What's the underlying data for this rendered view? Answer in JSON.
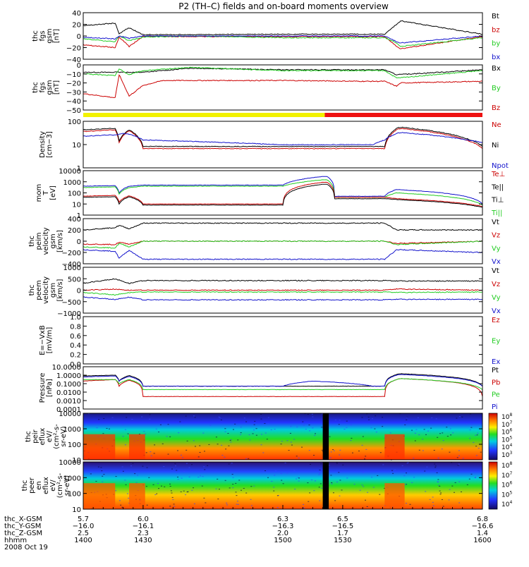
{
  "title": "P2 (TH–C) fields and on-board moments overview",
  "colors": {
    "black": "#000000",
    "red": "#cc0000",
    "green": "#22cc22",
    "blue": "#1111cc",
    "bar_yellow": "#f2f200",
    "bar_red": "#ee1111"
  },
  "mode_bar": {
    "segments": [
      {
        "from": 1400,
        "to": 1521,
        "color": "yellow"
      },
      {
        "from": 1521,
        "to": 1600,
        "color": "red"
      }
    ]
  },
  "colorbar_labels": [
    "10^8",
    "10^7",
    "10^6",
    "10^5",
    "10^4",
    "10^3"
  ],
  "colorbar_labels_peer": [
    "10^8",
    "10^7",
    "10^6",
    "10^5",
    "10^4"
  ],
  "bottom": {
    "rows": [
      {
        "label": "thc_X-GSM",
        "values": [
          "5.7",
          "6.0",
          "6.3",
          "6.5",
          "6.8"
        ]
      },
      {
        "label": "thc_Y-GSM",
        "values": [
          "−16.0",
          "−16.1",
          "−16.3",
          "−16.5",
          "−16.6"
        ]
      },
      {
        "label": "thc_Z-GSM",
        "values": [
          "2.5",
          "2.3",
          "2.0",
          "1.7",
          "1.4"
        ]
      },
      {
        "label": "hhmm",
        "values": [
          "1400",
          "1430",
          "1500",
          "1530",
          "1600"
        ]
      }
    ],
    "date": "2008 Oct 19"
  },
  "chart_data": [
    {
      "id": "fgs1",
      "type": "line",
      "ylabel": [
        "thc",
        "fgs",
        "gsm",
        "[nT]"
      ],
      "yticks": [
        "40",
        "20",
        "0",
        "−20",
        "−40"
      ],
      "ylim": [
        -40,
        40
      ],
      "legend": [
        {
          "text": "Bt",
          "color": "black"
        },
        {
          "text": "bz",
          "color": "red"
        },
        {
          "text": "by",
          "color": "green"
        },
        {
          "text": "bx",
          "color": "blue"
        }
      ],
      "series": [
        {
          "color": "black",
          "x": [
            1400,
            1416,
            1418,
            1423,
            1430,
            1500,
            1540,
            1551,
            1557,
            1559,
            1600
          ],
          "y": [
            18,
            22,
            4,
            14,
            2,
            3,
            3,
            3,
            20,
            26,
            3
          ]
        },
        {
          "color": "red",
          "x": [
            1400,
            1416,
            1418,
            1423,
            1430,
            1500,
            1540,
            1551,
            1557,
            1559,
            1600
          ],
          "y": [
            -15,
            -20,
            -2,
            -18,
            -1,
            -1,
            -1,
            -1,
            -18,
            -22,
            -1
          ]
        },
        {
          "color": "green",
          "x": [
            1400,
            1416,
            1418,
            1423,
            1430,
            1454,
            1500,
            1540,
            1551,
            1557,
            1559,
            1600
          ],
          "y": [
            -5,
            -10,
            0,
            -8,
            -2,
            0,
            -3,
            -3,
            -3,
            -12,
            -18,
            -3
          ]
        },
        {
          "color": "blue",
          "x": [
            1400,
            1416,
            1418,
            1423,
            1430,
            1500,
            1540,
            1551,
            1557,
            1559,
            1600
          ],
          "y": [
            -2,
            -5,
            0,
            -4,
            0,
            0,
            0,
            0,
            -10,
            -12,
            0
          ]
        }
      ]
    },
    {
      "id": "fgs2",
      "type": "line",
      "ylabel": [
        "thc",
        "fgs",
        "gsm",
        "[nT]"
      ],
      "yticks": [
        "0",
        "−10",
        "−20",
        "−30",
        "−40",
        "−50"
      ],
      "ylim": [
        -55,
        0
      ],
      "legend": [
        {
          "text": "Bx",
          "color": "black"
        },
        {
          "text": "By",
          "color": "green"
        },
        {
          "text": "Bz",
          "color": "red"
        }
      ],
      "series": [
        {
          "color": "black",
          "x": [
            1400,
            1430,
            1454,
            1500,
            1540,
            1551,
            1557,
            1600
          ],
          "y": [
            -9,
            -9,
            -4,
            -6,
            -6,
            -6,
            -12,
            -6
          ]
        },
        {
          "color": "green",
          "x": [
            1400,
            1416,
            1418,
            1423,
            1430,
            1454,
            1500,
            1540,
            1551,
            1557,
            1600
          ],
          "y": [
            -11,
            -13,
            -5,
            -12,
            -7,
            -3,
            -7,
            -7,
            -7,
            -16,
            -7
          ]
        },
        {
          "color": "red",
          "x": [
            1400,
            1416,
            1418,
            1423,
            1430,
            1440,
            1500,
            1540,
            1551,
            1557,
            1559,
            1600
          ],
          "y": [
            -35,
            -40,
            -12,
            -38,
            -25,
            -19,
            -19,
            -20,
            -20,
            -26,
            -22,
            -20
          ]
        }
      ]
    },
    {
      "id": "density",
      "type": "line",
      "log": true,
      "ylabel": [
        "Density",
        "[cm−3]"
      ],
      "yticks": [
        "100",
        "10",
        "1"
      ],
      "ylim": [
        1,
        150
      ],
      "legend": [
        {
          "text": "Ne",
          "color": "red"
        },
        {
          "text": "Ni",
          "color": "black"
        },
        {
          "text": "Npot",
          "color": "blue"
        }
      ],
      "series": [
        {
          "color": "red",
          "x": [
            1400,
            1416,
            1418,
            1423,
            1430,
            1500,
            1545,
            1551,
            1557,
            1559,
            1600
          ],
          "y": [
            50,
            60,
            15,
            55,
            8,
            8,
            8,
            8,
            60,
            70,
            8
          ]
        },
        {
          "color": "black",
          "x": [
            1400,
            1416,
            1418,
            1423,
            1430,
            1500,
            1545,
            1551,
            1557,
            1559,
            1600
          ],
          "y": [
            60,
            70,
            18,
            60,
            10,
            10,
            10,
            10,
            70,
            80,
            10
          ]
        },
        {
          "color": "blue",
          "x": [
            1400,
            1416,
            1420,
            1423,
            1430,
            1500,
            1545,
            1551,
            1557,
            1559,
            1600
          ],
          "y": [
            30,
            35,
            40,
            38,
            20,
            12,
            12,
            20,
            40,
            45,
            15
          ]
        }
      ]
    },
    {
      "id": "temp",
      "type": "line",
      "log": true,
      "ylabel": [
        "mom",
        "T",
        "[eV]"
      ],
      "yticks": [
        "10000",
        "1000",
        "100",
        "10",
        "1"
      ],
      "ylim": [
        1,
        10000
      ],
      "legend": [
        {
          "text": "Te⊥",
          "color": "red"
        },
        {
          "text": "Te||",
          "color": "black"
        },
        {
          "text": "Ti⊥",
          "color": "black"
        },
        {
          "text": "Ti||",
          "color": "green"
        }
      ],
      "series": [
        {
          "color": "blue",
          "x": [
            1400,
            1416,
            1418,
            1423,
            1430,
            1500,
            1520,
            1522,
            1526,
            1530,
            1551,
            1557,
            1600
          ],
          "y": [
            400,
            450,
            100,
            400,
            500,
            500,
            3000,
            3000,
            50,
            50,
            50,
            200,
            10
          ]
        },
        {
          "color": "green",
          "x": [
            1400,
            1416,
            1418,
            1423,
            1430,
            1500,
            1520,
            1522,
            1526,
            1530,
            1551,
            1557,
            1600
          ],
          "y": [
            300,
            350,
            80,
            300,
            400,
            400,
            1500,
            1500,
            40,
            40,
            40,
            100,
            8
          ]
        },
        {
          "color": "red",
          "x": [
            1400,
            1416,
            1418,
            1423,
            1430,
            1500,
            1520,
            1522,
            1526,
            1530,
            1551,
            1557,
            1600
          ],
          "y": [
            50,
            60,
            15,
            55,
            10,
            10,
            900,
            900,
            40,
            40,
            40,
            30,
            6
          ]
        },
        {
          "color": "black",
          "x": [
            1400,
            1416,
            1418,
            1423,
            1430,
            1500,
            1520,
            1522,
            1526,
            1530,
            1551,
            1557,
            1600
          ],
          "y": [
            40,
            45,
            10,
            45,
            8,
            8,
            600,
            600,
            30,
            30,
            30,
            25,
            5
          ]
        }
      ]
    },
    {
      "id": "peim",
      "type": "line",
      "ylabel": [
        "thc",
        "peim",
        "velocity",
        "gsm",
        "[km/s]"
      ],
      "yticks": [
        "400",
        "200",
        "0",
        "−200",
        "−400"
      ],
      "ylim": [
        -400,
        400
      ],
      "legend": [
        {
          "text": "Vt",
          "color": "black"
        },
        {
          "text": "Vz",
          "color": "red"
        },
        {
          "text": "Vy",
          "color": "green"
        },
        {
          "text": "Vx",
          "color": "blue"
        }
      ],
      "series": [
        {
          "color": "black",
          "x": [
            1400,
            1416,
            1418,
            1423,
            1430,
            1500,
            1551,
            1557,
            1600
          ],
          "y": [
            200,
            240,
            280,
            220,
            320,
            320,
            320,
            200,
            200
          ]
        },
        {
          "color": "red",
          "x": [
            1400,
            1416,
            1418,
            1423,
            1430,
            1500,
            1551,
            1557,
            1600
          ],
          "y": [
            -50,
            -60,
            -20,
            -50,
            0,
            0,
            0,
            -40,
            0
          ]
        },
        {
          "color": "green",
          "x": [
            1400,
            1416,
            1418,
            1423,
            1430,
            1500,
            1551,
            1557,
            1600
          ],
          "y": [
            -100,
            -120,
            -40,
            -100,
            0,
            0,
            0,
            -60,
            0
          ]
        },
        {
          "color": "blue",
          "x": [
            1400,
            1416,
            1418,
            1423,
            1430,
            1500,
            1551,
            1557,
            1600
          ],
          "y": [
            -150,
            -180,
            -300,
            -160,
            -320,
            -320,
            -320,
            -150,
            -200
          ]
        }
      ]
    },
    {
      "id": "peem",
      "type": "line",
      "ylabel": [
        "thc",
        "peem",
        "velocity",
        "gsm",
        "[km/s]"
      ],
      "yticks": [
        "1000",
        "500",
        "0",
        "−500",
        "−1000"
      ],
      "ylim": [
        -1000,
        1000
      ],
      "legend": [
        {
          "text": "Vt",
          "color": "black"
        },
        {
          "text": "Vz",
          "color": "red"
        },
        {
          "text": "Vy",
          "color": "green"
        },
        {
          "text": "Vx",
          "color": "blue"
        }
      ],
      "series": [
        {
          "color": "black",
          "x": [
            1400,
            1416,
            1423,
            1430,
            1500,
            1551,
            1557,
            1600
          ],
          "y": [
            300,
            500,
            300,
            420,
            420,
            420,
            400,
            400
          ]
        },
        {
          "color": "red",
          "x": [
            1400,
            1416,
            1423,
            1430,
            1500,
            1551,
            1557,
            1600
          ],
          "y": [
            0,
            50,
            0,
            0,
            0,
            0,
            50,
            0
          ]
        },
        {
          "color": "green",
          "x": [
            1400,
            1416,
            1423,
            1430,
            1500,
            1551,
            1557,
            1600
          ],
          "y": [
            -100,
            -200,
            -100,
            -80,
            -80,
            -80,
            -100,
            -80
          ]
        },
        {
          "color": "blue",
          "x": [
            1400,
            1416,
            1423,
            1430,
            1500,
            1551,
            1557,
            1600
          ],
          "y": [
            -300,
            -400,
            -300,
            -420,
            -420,
            -420,
            -400,
            -400
          ]
        }
      ]
    },
    {
      "id": "efield",
      "type": "line",
      "ylabel": [
        "E=−VxB",
        "[mV/m]"
      ],
      "yticks": [
        "1.0",
        "0.8",
        "0.6",
        "0.4",
        "0.2",
        "0.0"
      ],
      "ylim": [
        0,
        1
      ],
      "legend": [
        {
          "text": "Ez",
          "color": "red"
        },
        {
          "text": "Ey",
          "color": "green"
        },
        {
          "text": "Ex",
          "color": "blue"
        }
      ],
      "series": []
    },
    {
      "id": "pressure",
      "type": "line",
      "log": true,
      "ylabel": [
        "Pressure",
        "[nPa]"
      ],
      "yticks": [
        "10.0000",
        "1.0000",
        "0.1000",
        "0.0100",
        "0.0010",
        "0.0001"
      ],
      "ylim": [
        0.0001,
        10
      ],
      "legend": [
        {
          "text": "Pt",
          "color": "black"
        },
        {
          "text": "Pb",
          "color": "red"
        },
        {
          "text": "Pe",
          "color": "green"
        },
        {
          "text": "Pi",
          "color": "blue"
        }
      ],
      "series": [
        {
          "color": "black",
          "x": [
            1400,
            1416,
            1418,
            1423,
            1430,
            1500,
            1515,
            1545,
            1551,
            1557,
            1559,
            1600
          ],
          "y": [
            0.8,
            1.0,
            0.2,
            0.9,
            0.05,
            0.05,
            0.05,
            0.05,
            0.05,
            1.2,
            1.5,
            0.05
          ]
        },
        {
          "color": "red",
          "x": [
            1400,
            1416,
            1418,
            1423,
            1430,
            1500,
            1515,
            1545,
            1551,
            1557,
            1559,
            1600
          ],
          "y": [
            0.2,
            0.3,
            0.05,
            0.25,
            0.003,
            0.003,
            0.003,
            0.003,
            0.003,
            0.3,
            0.4,
            0.003
          ]
        },
        {
          "color": "green",
          "x": [
            1400,
            1416,
            1418,
            1423,
            1430,
            1500,
            1515,
            1545,
            1551,
            1557,
            1559,
            1600
          ],
          "y": [
            0.3,
            0.3,
            0.1,
            0.3,
            0.02,
            0.02,
            0.02,
            0.02,
            0.02,
            0.3,
            0.4,
            0.02
          ]
        },
        {
          "color": "blue",
          "x": [
            1400,
            1416,
            1418,
            1423,
            1430,
            1500,
            1515,
            1545,
            1551,
            1557,
            1559,
            1600
          ],
          "y": [
            0.6,
            0.8,
            0.2,
            0.7,
            0.05,
            0.05,
            0.2,
            0.05,
            0.05,
            1.0,
            1.2,
            0.05
          ]
        }
      ]
    },
    {
      "id": "peir",
      "type": "heatmap",
      "ylabel": [
        "thc",
        "peir",
        "eflux",
        "eV/",
        "(cm²-s-",
        "sr-eV)"
      ],
      "yticks": [
        "10000",
        "1000",
        "100",
        "10"
      ],
      "ylim": [
        10,
        10000
      ],
      "colorbar": [
        "10^8",
        "10^7",
        "10^6",
        "10^5",
        "10^4",
        "10^3"
      ]
    },
    {
      "id": "peer",
      "type": "heatmap",
      "ylabel": [
        "thc",
        "peer",
        "en",
        "eflux",
        "eV/",
        "(cm²-s-",
        "sr-eV)"
      ],
      "yticks": [
        "10000",
        "1000",
        "100",
        "10"
      ],
      "ylim": [
        10,
        10000
      ],
      "colorbar": [
        "10^8",
        "10^7",
        "10^6",
        "10^5",
        "10^4"
      ]
    }
  ]
}
